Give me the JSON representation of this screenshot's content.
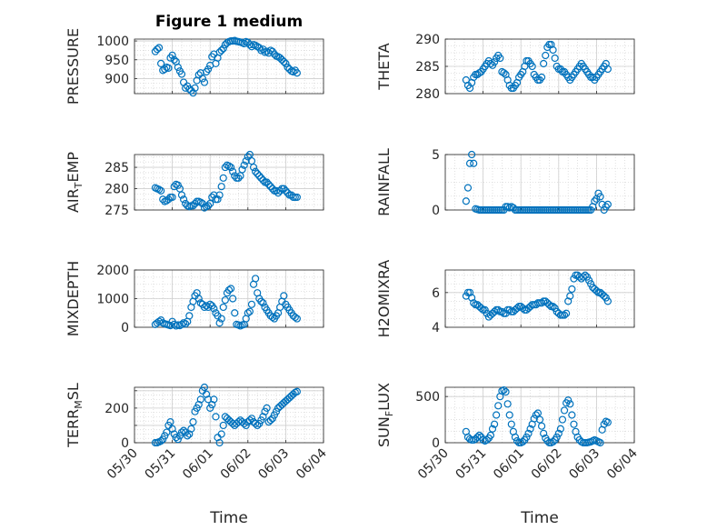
{
  "figure_title": "Figure 1 medium",
  "x_axis_label": "Time",
  "marker_color": "#0072BD",
  "chart_data": [
    {
      "type": "scatter",
      "name": "PRESSURE",
      "ylabel": "PRESSURE",
      "ylim": [
        860,
        1005
      ],
      "yticks": [
        900,
        950,
        1000
      ],
      "xlim": [
        0,
        5
      ],
      "x_tick_labels": [
        "05/30",
        "05/31",
        "06/01",
        "06/02",
        "06/03",
        "06/04"
      ],
      "x": [
        0.55,
        0.6,
        0.65,
        0.7,
        0.75,
        0.8,
        0.85,
        0.9,
        0.95,
        1.0,
        1.05,
        1.1,
        1.15,
        1.2,
        1.25,
        1.3,
        1.35,
        1.4,
        1.45,
        1.5,
        1.55,
        1.6,
        1.65,
        1.7,
        1.75,
        1.8,
        1.85,
        1.9,
        1.95,
        2.0,
        2.05,
        2.1,
        2.15,
        2.2,
        2.25,
        2.3,
        2.35,
        2.4,
        2.45,
        2.5,
        2.55,
        2.6,
        2.65,
        2.7,
        2.75,
        2.8,
        2.85,
        2.9,
        2.95,
        3.0,
        3.05,
        3.1,
        3.15,
        3.2,
        3.25,
        3.3,
        3.35,
        3.4,
        3.45,
        3.5,
        3.55,
        3.6,
        3.65,
        3.7,
        3.75,
        3.8,
        3.85,
        3.9,
        3.95,
        4.0,
        4.05,
        4.1,
        4.15,
        4.2,
        4.25,
        4.3
      ],
      "y": [
        972,
        978,
        982,
        940,
        922,
        925,
        930,
        928,
        955,
        962,
        950,
        945,
        930,
        920,
        912,
        890,
        875,
        880,
        872,
        868,
        862,
        875,
        895,
        910,
        915,
        900,
        890,
        918,
        925,
        935,
        958,
        965,
        940,
        955,
        970,
        975,
        980,
        990,
        995,
        998,
        1000,
        1000,
        1001,
        999,
        998,
        997,
        995,
        993,
        998,
        996,
        990,
        985,
        990,
        988,
        985,
        982,
        975,
        978,
        970,
        972,
        968,
        975,
        972,
        965,
        960,
        958,
        955,
        950,
        945,
        940,
        930,
        925,
        920,
        918,
        922,
        915
      ]
    },
    {
      "type": "scatter",
      "name": "THETA",
      "ylabel": "THETA",
      "ylim": [
        280,
        290
      ],
      "yticks": [
        280,
        285,
        290
      ],
      "xlim": [
        0,
        5
      ],
      "x_tick_labels": [
        "05/30",
        "05/31",
        "06/01",
        "06/02",
        "06/03",
        "06/04"
      ],
      "x": [
        0.55,
        0.6,
        0.65,
        0.7,
        0.75,
        0.8,
        0.85,
        0.9,
        0.95,
        1.0,
        1.05,
        1.1,
        1.15,
        1.2,
        1.25,
        1.3,
        1.35,
        1.4,
        1.45,
        1.5,
        1.55,
        1.6,
        1.65,
        1.7,
        1.75,
        1.8,
        1.85,
        1.9,
        1.95,
        2.0,
        2.05,
        2.1,
        2.15,
        2.2,
        2.25,
        2.3,
        2.35,
        2.4,
        2.45,
        2.5,
        2.55,
        2.6,
        2.65,
        2.7,
        2.75,
        2.8,
        2.85,
        2.9,
        2.95,
        3.0,
        3.05,
        3.1,
        3.15,
        3.2,
        3.25,
        3.3,
        3.35,
        3.4,
        3.45,
        3.5,
        3.55,
        3.6,
        3.65,
        3.7,
        3.75,
        3.8,
        3.85,
        3.9,
        3.95,
        4.0,
        4.05,
        4.1,
        4.15,
        4.2,
        4.25,
        4.3
      ],
      "y": [
        282.5,
        281.5,
        281,
        282,
        283,
        283.5,
        283.5,
        283.8,
        284,
        284.5,
        285,
        285.5,
        286,
        285.5,
        285.2,
        285.8,
        286.5,
        287,
        286.5,
        284,
        283.8,
        283.5,
        282.5,
        281.5,
        281,
        281,
        281.5,
        282,
        283,
        283.5,
        284,
        285,
        286,
        286,
        285.5,
        285,
        283.5,
        283,
        282.5,
        282.5,
        283,
        285.5,
        287,
        288.5,
        289,
        289,
        288,
        286.5,
        285,
        284.5,
        284.5,
        284,
        284,
        283.5,
        283,
        282.5,
        283,
        283.5,
        284,
        284.5,
        285,
        285.5,
        285,
        284.5,
        284,
        283.5,
        283,
        283,
        282.5,
        283,
        283.5,
        284,
        284.5,
        285,
        285.5,
        284.5
      ]
    },
    {
      "type": "scatter",
      "name": "AIR_TEMP",
      "ylabel": "AIR_TEMP",
      "ylim": [
        275,
        288
      ],
      "yticks": [
        275,
        280,
        285
      ],
      "xlim": [
        0,
        5
      ],
      "x_tick_labels": [
        "05/30",
        "05/31",
        "06/01",
        "06/02",
        "06/03",
        "06/04"
      ],
      "x": [
        0.55,
        0.6,
        0.65,
        0.7,
        0.75,
        0.8,
        0.85,
        0.9,
        0.95,
        1.0,
        1.05,
        1.1,
        1.15,
        1.2,
        1.25,
        1.3,
        1.35,
        1.4,
        1.45,
        1.5,
        1.55,
        1.6,
        1.65,
        1.7,
        1.75,
        1.8,
        1.85,
        1.9,
        1.95,
        2.0,
        2.05,
        2.1,
        2.15,
        2.2,
        2.25,
        2.3,
        2.35,
        2.4,
        2.45,
        2.5,
        2.55,
        2.6,
        2.65,
        2.7,
        2.75,
        2.8,
        2.85,
        2.9,
        2.95,
        3.0,
        3.05,
        3.1,
        3.15,
        3.2,
        3.25,
        3.3,
        3.35,
        3.4,
        3.45,
        3.5,
        3.55,
        3.6,
        3.65,
        3.7,
        3.75,
        3.8,
        3.85,
        3.9,
        3.95,
        4.0,
        4.05,
        4.1,
        4.15,
        4.2,
        4.25,
        4.3
      ],
      "y": [
        280.2,
        280,
        279.8,
        279.5,
        277.5,
        277,
        277.2,
        277.5,
        278,
        278,
        280.5,
        281,
        280.8,
        280,
        278.5,
        277.5,
        276.5,
        276,
        275.8,
        276,
        276,
        276.5,
        277,
        277,
        276.8,
        276.5,
        275.5,
        275.8,
        276,
        276.5,
        278,
        278.5,
        277.5,
        277.5,
        278.5,
        280.5,
        282.5,
        285,
        285.5,
        285.3,
        285,
        284,
        283,
        282.5,
        282.5,
        283,
        284.5,
        285.5,
        286.5,
        287.5,
        288,
        286.5,
        285,
        284,
        283.5,
        283,
        282.5,
        282,
        281.5,
        281.5,
        281,
        280.5,
        280,
        279.5,
        279.5,
        279,
        279.5,
        280,
        280,
        279.5,
        279,
        278.5,
        278.5,
        278,
        278,
        278
      ]
    },
    {
      "type": "scatter",
      "name": "RAINFALL",
      "ylabel": "RAINFALL",
      "ylim": [
        0,
        5
      ],
      "yticks": [
        0,
        5
      ],
      "xlim": [
        0,
        5
      ],
      "x_tick_labels": [
        "05/30",
        "05/31",
        "06/01",
        "06/02",
        "06/03",
        "06/04"
      ],
      "x": [
        0.55,
        0.6,
        0.65,
        0.7,
        0.75,
        0.8,
        0.85,
        0.9,
        0.95,
        1.0,
        1.05,
        1.1,
        1.15,
        1.2,
        1.25,
        1.3,
        1.35,
        1.4,
        1.45,
        1.5,
        1.55,
        1.6,
        1.65,
        1.7,
        1.75,
        1.8,
        1.85,
        1.9,
        1.95,
        2.0,
        2.05,
        2.1,
        2.15,
        2.2,
        2.25,
        2.3,
        2.35,
        2.4,
        2.45,
        2.5,
        2.55,
        2.6,
        2.65,
        2.7,
        2.75,
        2.8,
        2.85,
        2.9,
        2.95,
        3.0,
        3.05,
        3.1,
        3.15,
        3.2,
        3.25,
        3.3,
        3.35,
        3.4,
        3.45,
        3.5,
        3.55,
        3.6,
        3.65,
        3.7,
        3.75,
        3.8,
        3.85,
        3.9,
        3.95,
        4.0,
        4.05,
        4.1,
        4.15,
        4.2,
        4.25,
        4.3
      ],
      "y": [
        0.8,
        2.0,
        4.2,
        5.0,
        4.2,
        0.1,
        0.05,
        0,
        0,
        0,
        0,
        0,
        0,
        0,
        0,
        0,
        0,
        0,
        0,
        0,
        0,
        0.3,
        0.3,
        0.2,
        0.3,
        0.2,
        0,
        0,
        0,
        0,
        0,
        0,
        0,
        0,
        0,
        0,
        0,
        0,
        0,
        0,
        0,
        0,
        0,
        0,
        0,
        0,
        0,
        0,
        0,
        0,
        0,
        0,
        0,
        0,
        0,
        0,
        0,
        0,
        0,
        0,
        0,
        0,
        0,
        0,
        0,
        0,
        0,
        0.3,
        0.8,
        1.0,
        1.5,
        1.2,
        0.5,
        0,
        0.3,
        0.5
      ]
    },
    {
      "type": "scatter",
      "name": "MIXDEPTH",
      "ylabel": "MIXDEPTH",
      "ylim": [
        0,
        2000
      ],
      "yticks": [
        0,
        1000,
        2000
      ],
      "xlim": [
        0,
        5
      ],
      "x_tick_labels": [
        "05/30",
        "05/31",
        "06/01",
        "06/02",
        "06/03",
        "06/04"
      ],
      "x": [
        0.55,
        0.6,
        0.65,
        0.7,
        0.75,
        0.8,
        0.85,
        0.9,
        0.95,
        1.0,
        1.05,
        1.1,
        1.15,
        1.2,
        1.25,
        1.3,
        1.35,
        1.4,
        1.45,
        1.5,
        1.55,
        1.6,
        1.65,
        1.7,
        1.75,
        1.8,
        1.85,
        1.9,
        1.95,
        2.0,
        2.05,
        2.1,
        2.15,
        2.2,
        2.25,
        2.3,
        2.35,
        2.4,
        2.45,
        2.5,
        2.55,
        2.6,
        2.65,
        2.7,
        2.75,
        2.8,
        2.85,
        2.9,
        2.95,
        3.0,
        3.05,
        3.1,
        3.15,
        3.2,
        3.25,
        3.3,
        3.35,
        3.4,
        3.45,
        3.5,
        3.55,
        3.6,
        3.65,
        3.7,
        3.75,
        3.8,
        3.85,
        3.9,
        3.95,
        4.0,
        4.05,
        4.1,
        4.15,
        4.2,
        4.25,
        4.3
      ],
      "y": [
        100,
        150,
        200,
        250,
        150,
        120,
        100,
        80,
        60,
        200,
        100,
        50,
        80,
        60,
        100,
        150,
        120,
        200,
        400,
        700,
        900,
        1100,
        1200,
        1000,
        850,
        800,
        700,
        750,
        700,
        800,
        750,
        650,
        500,
        400,
        150,
        300,
        700,
        950,
        1200,
        1300,
        1350,
        1000,
        500,
        100,
        80,
        50,
        80,
        100,
        300,
        500,
        550,
        800,
        1500,
        1700,
        1200,
        1000,
        900,
        850,
        700,
        600,
        500,
        400,
        350,
        300,
        400,
        500,
        700,
        900,
        1100,
        800,
        700,
        600,
        500,
        400,
        350,
        300
      ]
    },
    {
      "type": "scatter",
      "name": "H2OMIXRA",
      "ylabel": "H2OMIXRA",
      "ylim": [
        4,
        7.3
      ],
      "yticks": [
        4,
        6
      ],
      "xlim": [
        0,
        5
      ],
      "x_tick_labels": [
        "05/30",
        "05/31",
        "06/01",
        "06/02",
        "06/03",
        "06/04"
      ],
      "x": [
        0.55,
        0.6,
        0.65,
        0.7,
        0.75,
        0.8,
        0.85,
        0.9,
        0.95,
        1.0,
        1.05,
        1.1,
        1.15,
        1.2,
        1.25,
        1.3,
        1.35,
        1.4,
        1.45,
        1.5,
        1.55,
        1.6,
        1.65,
        1.7,
        1.75,
        1.8,
        1.85,
        1.9,
        1.95,
        2.0,
        2.05,
        2.1,
        2.15,
        2.2,
        2.25,
        2.3,
        2.35,
        2.4,
        2.45,
        2.5,
        2.55,
        2.6,
        2.65,
        2.7,
        2.75,
        2.8,
        2.85,
        2.9,
        2.95,
        3.0,
        3.05,
        3.1,
        3.15,
        3.2,
        3.25,
        3.3,
        3.35,
        3.4,
        3.45,
        3.5,
        3.55,
        3.6,
        3.65,
        3.7,
        3.75,
        3.8,
        3.85,
        3.9,
        3.95,
        4.0,
        4.05,
        4.1,
        4.15,
        4.2,
        4.25,
        4.3
      ],
      "y": [
        5.8,
        6.0,
        6.0,
        5.7,
        5.4,
        5.3,
        5.3,
        5.2,
        5.1,
        5.0,
        5.0,
        4.8,
        4.6,
        4.7,
        4.8,
        4.9,
        5.0,
        5.0,
        4.9,
        4.9,
        4.8,
        4.8,
        5.0,
        5.0,
        4.9,
        4.9,
        5.0,
        5.1,
        5.2,
        5.2,
        5.1,
        5.0,
        5.0,
        5.1,
        5.2,
        5.3,
        5.3,
        5.3,
        5.4,
        5.4,
        5.4,
        5.5,
        5.5,
        5.4,
        5.3,
        5.2,
        5.2,
        5.1,
        4.9,
        4.8,
        4.7,
        4.7,
        4.7,
        4.8,
        5.5,
        5.8,
        6.2,
        6.8,
        7.0,
        7.0,
        6.9,
        6.8,
        6.9,
        7.0,
        6.9,
        6.7,
        6.5,
        6.3,
        6.2,
        6.1,
        6.0,
        6.0,
        5.9,
        5.8,
        5.7,
        5.5
      ]
    },
    {
      "type": "scatter",
      "name": "TERR_MSL",
      "ylabel": "TERR_MSL",
      "ylim": [
        0,
        320
      ],
      "yticks": [
        0,
        100,
        200,
        300
      ],
      "ytick_labels": [
        "0",
        "",
        "200",
        ""
      ],
      "xlim": [
        0,
        5
      ],
      "x_tick_labels": [
        "05/30",
        "05/31",
        "06/01",
        "06/02",
        "06/03",
        "06/04"
      ],
      "x": [
        0.55,
        0.6,
        0.65,
        0.7,
        0.75,
        0.8,
        0.85,
        0.9,
        0.95,
        1.0,
        1.05,
        1.1,
        1.15,
        1.2,
        1.25,
        1.3,
        1.35,
        1.4,
        1.45,
        1.5,
        1.55,
        1.6,
        1.65,
        1.7,
        1.75,
        1.8,
        1.85,
        1.9,
        1.95,
        2.0,
        2.05,
        2.1,
        2.15,
        2.2,
        2.25,
        2.3,
        2.35,
        2.4,
        2.45,
        2.5,
        2.55,
        2.6,
        2.65,
        2.7,
        2.75,
        2.8,
        2.85,
        2.9,
        2.95,
        3.0,
        3.05,
        3.1,
        3.15,
        3.2,
        3.25,
        3.3,
        3.35,
        3.4,
        3.45,
        3.5,
        3.55,
        3.6,
        3.65,
        3.7,
        3.75,
        3.8,
        3.85,
        3.9,
        3.95,
        4.0,
        4.05,
        4.1,
        4.15,
        4.2,
        4.25,
        4.3
      ],
      "y": [
        0,
        0,
        5,
        10,
        20,
        40,
        60,
        100,
        120,
        80,
        50,
        30,
        20,
        40,
        60,
        70,
        60,
        40,
        50,
        80,
        120,
        180,
        200,
        220,
        250,
        300,
        320,
        280,
        250,
        200,
        220,
        250,
        150,
        30,
        0,
        50,
        100,
        150,
        140,
        130,
        120,
        110,
        100,
        110,
        120,
        130,
        120,
        110,
        100,
        120,
        130,
        140,
        120,
        110,
        100,
        110,
        130,
        150,
        180,
        200,
        120,
        130,
        140,
        160,
        180,
        200,
        210,
        220,
        230,
        240,
        250,
        260,
        270,
        280,
        290,
        295
      ]
    },
    {
      "type": "scatter",
      "name": "SUN_FLUX",
      "ylabel": "SUN_FLUX",
      "ylim": [
        0,
        600
      ],
      "yticks": [
        0,
        500
      ],
      "xlim": [
        0,
        5
      ],
      "x_tick_labels": [
        "05/30",
        "05/31",
        "06/01",
        "06/02",
        "06/03",
        "06/04"
      ],
      "x": [
        0.55,
        0.6,
        0.65,
        0.7,
        0.75,
        0.8,
        0.85,
        0.9,
        0.95,
        1.0,
        1.05,
        1.1,
        1.15,
        1.2,
        1.25,
        1.3,
        1.35,
        1.4,
        1.45,
        1.5,
        1.55,
        1.6,
        1.65,
        1.7,
        1.75,
        1.8,
        1.85,
        1.9,
        1.95,
        2.0,
        2.05,
        2.1,
        2.15,
        2.2,
        2.25,
        2.3,
        2.35,
        2.4,
        2.45,
        2.5,
        2.55,
        2.6,
        2.65,
        2.7,
        2.75,
        2.8,
        2.85,
        2.9,
        2.95,
        3.0,
        3.05,
        3.1,
        3.15,
        3.2,
        3.25,
        3.3,
        3.35,
        3.4,
        3.45,
        3.5,
        3.55,
        3.6,
        3.65,
        3.7,
        3.75,
        3.8,
        3.85,
        3.9,
        3.95,
        4.0,
        4.05,
        4.1,
        4.15,
        4.2,
        4.25,
        4.3
      ],
      "y": [
        120,
        60,
        40,
        30,
        30,
        40,
        60,
        80,
        60,
        30,
        20,
        30,
        50,
        80,
        150,
        200,
        300,
        400,
        500,
        560,
        570,
        550,
        420,
        300,
        200,
        120,
        60,
        20,
        0,
        0,
        10,
        30,
        60,
        100,
        150,
        200,
        260,
        300,
        320,
        250,
        180,
        100,
        50,
        20,
        0,
        0,
        10,
        30,
        60,
        100,
        150,
        250,
        350,
        430,
        460,
        420,
        300,
        200,
        120,
        60,
        30,
        10,
        0,
        0,
        0,
        5,
        10,
        20,
        30,
        20,
        10,
        0,
        140,
        200,
        230,
        220
      ]
    }
  ]
}
